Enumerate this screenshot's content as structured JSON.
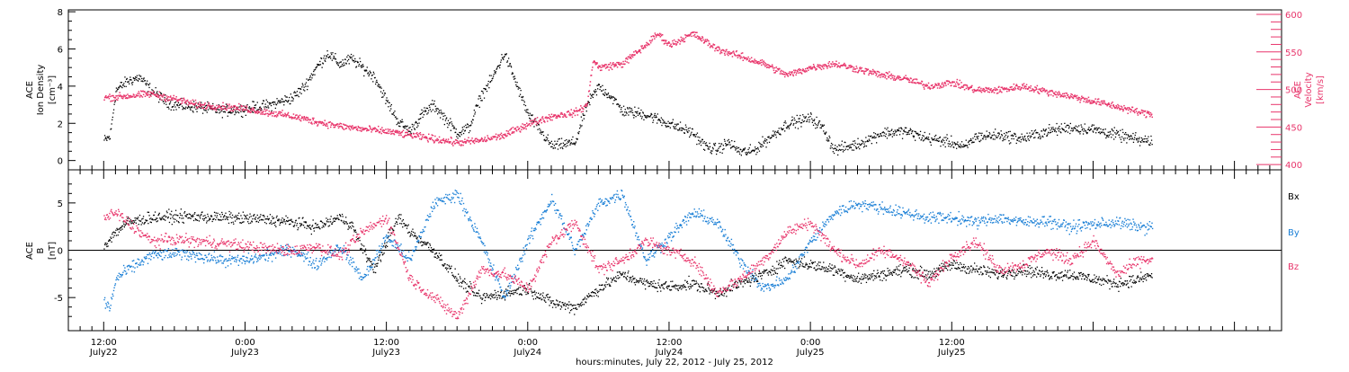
{
  "chart_data": [
    {
      "type": "scatter",
      "panel": "top",
      "ylabel": [
        "ACE",
        "Ion Density",
        "[cm⁻³]"
      ],
      "ylim": [
        -0.5,
        8.1
      ],
      "yticks": [
        0,
        2,
        4,
        6,
        8
      ],
      "y2label": [
        "ACE",
        "Velocity",
        "[km/s]"
      ],
      "y2lim": [
        393,
        606
      ],
      "y2ticks": [
        400,
        450,
        500,
        550,
        600
      ],
      "colors": {
        "density": "#000000",
        "velocity": "#e8356b"
      },
      "series": [
        {
          "key": "density",
          "axis": "left",
          "x": [
            0,
            0.5,
            1,
            2,
            3,
            4,
            5,
            6,
            8,
            10,
            12,
            14,
            16,
            17,
            18,
            19,
            20,
            21,
            22,
            23,
            24,
            25,
            26,
            27,
            28,
            30,
            31,
            32,
            33,
            34,
            36,
            38,
            40,
            41,
            42,
            43,
            44,
            46,
            48,
            50,
            51,
            52,
            53,
            54,
            55,
            56,
            58,
            60,
            61,
            62,
            64,
            66,
            68,
            70,
            72,
            73,
            74,
            76,
            78,
            80,
            82,
            84,
            86,
            88,
            89
          ],
          "y": [
            1.1,
            1.3,
            3.8,
            4.3,
            4.5,
            3.8,
            3.3,
            3.0,
            2.9,
            2.7,
            2.8,
            3.0,
            3.4,
            4.0,
            5.0,
            5.8,
            5.2,
            5.5,
            5.0,
            4.5,
            3.2,
            2.1,
            1.6,
            2.5,
            3.0,
            1.5,
            1.8,
            3.5,
            4.5,
            5.8,
            2.5,
            0.8,
            1.0,
            3.0,
            4.0,
            3.5,
            2.7,
            2.5,
            2.0,
            1.5,
            0.8,
            0.6,
            1.0,
            0.5,
            0.5,
            1.0,
            2.0,
            2.3,
            1.8,
            0.6,
            0.9,
            1.5,
            1.6,
            1.2,
            1.0,
            0.7,
            1.3,
            1.4,
            1.2,
            1.6,
            1.8,
            1.7,
            1.4,
            1.1,
            1.1
          ]
        },
        {
          "key": "velocity",
          "axis": "right",
          "x": [
            0,
            2,
            4,
            6,
            8,
            10,
            12,
            14,
            16,
            18,
            20,
            22,
            24,
            26,
            28,
            30,
            32,
            34,
            36,
            38,
            40,
            41,
            41.5,
            42,
            44,
            46,
            47,
            48,
            50,
            52,
            54,
            56,
            58,
            60,
            62,
            64,
            66,
            68,
            70,
            72,
            74,
            76,
            78,
            80,
            82,
            84,
            86,
            88,
            89
          ],
          "y": [
            490,
            492,
            495,
            488,
            480,
            478,
            475,
            470,
            465,
            458,
            452,
            448,
            445,
            440,
            435,
            430,
            433,
            440,
            455,
            465,
            470,
            480,
            540,
            530,
            535,
            560,
            575,
            560,
            575,
            555,
            545,
            535,
            520,
            530,
            535,
            528,
            520,
            515,
            505,
            510,
            500,
            500,
            505,
            498,
            492,
            485,
            478,
            470,
            468
          ]
        }
      ]
    },
    {
      "type": "scatter",
      "panel": "bottom",
      "ylabel": [
        "ACE",
        "B",
        "[nT]"
      ],
      "ylim": [
        -8.5,
        8.5
      ],
      "yticks": [
        -5,
        0,
        5
      ],
      "zero_line": true,
      "legend": [
        "Bx",
        "By",
        "Bz"
      ],
      "colors": {
        "bx": "#000000",
        "by": "#1a7fd6",
        "bz": "#e8356b"
      },
      "series": [
        {
          "name": "Bx",
          "key": "bx",
          "x": [
            0,
            1,
            2,
            4,
            6,
            8,
            10,
            14,
            16,
            18,
            20,
            21,
            22,
            23,
            24,
            25,
            26,
            28,
            30,
            32,
            34,
            36,
            38,
            40,
            42,
            44,
            46,
            48,
            50,
            52,
            54,
            56,
            58,
            60,
            62,
            64,
            66,
            68,
            70,
            72,
            74,
            76,
            78,
            80,
            82,
            84,
            86,
            88,
            89
          ],
          "y": [
            0.5,
            2.0,
            3.0,
            3.5,
            3.6,
            3.6,
            3.5,
            3.3,
            3.0,
            2.5,
            3.5,
            2.8,
            0,
            -2.0,
            1.0,
            3.5,
            2.0,
            0,
            -3.0,
            -5.0,
            -4.5,
            -4.0,
            -5.5,
            -6.0,
            -4.0,
            -2.5,
            -3.5,
            -3.8,
            -3.5,
            -4.5,
            -3.5,
            -2.5,
            -1.0,
            -1.5,
            -2.0,
            -3.0,
            -2.5,
            -2.0,
            -2.5,
            -1.5,
            -2.0,
            -2.5,
            -2.0,
            -2.5,
            -2.5,
            -3.0,
            -3.5,
            -3.0,
            -2.5
          ]
        },
        {
          "name": "By",
          "key": "by",
          "x": [
            0,
            0.5,
            1,
            2,
            4,
            6,
            8,
            10,
            12,
            14,
            16,
            18,
            20,
            22,
            24,
            26,
            28,
            30,
            32,
            34,
            36,
            38,
            40,
            42,
            44,
            46,
            48,
            50,
            52,
            54,
            56,
            58,
            60,
            62,
            64,
            66,
            68,
            70,
            72,
            74,
            76,
            78,
            80,
            82,
            84,
            86,
            88,
            89
          ],
          "y": [
            -5.5,
            -6.0,
            -3.0,
            -2.0,
            -0.5,
            -0.3,
            -0.5,
            -1.0,
            -1.0,
            -0.5,
            0.2,
            -1.5,
            0.5,
            -3.0,
            1.5,
            -1.0,
            5.0,
            6.0,
            1.0,
            -5.0,
            1.0,
            5.5,
            0,
            5.0,
            6.0,
            -1.0,
            1.5,
            4.0,
            3.0,
            -1.0,
            -4.0,
            -3.0,
            1.0,
            4.0,
            5.0,
            4.5,
            4.0,
            3.5,
            3.5,
            3.0,
            3.5,
            3.0,
            3.2,
            2.5,
            2.8,
            3.0,
            2.5,
            2.5
          ]
        },
        {
          "name": "Bz",
          "key": "bz",
          "x": [
            0,
            1,
            2,
            4,
            6,
            8,
            10,
            12,
            14,
            16,
            18,
            20,
            22,
            24,
            26,
            28,
            30,
            32,
            34,
            36,
            38,
            40,
            42,
            44,
            46,
            48,
            50,
            52,
            54,
            56,
            58,
            60,
            62,
            64,
            66,
            68,
            70,
            72,
            74,
            76,
            78,
            80,
            82,
            84,
            86,
            88,
            89
          ],
          "y": [
            3.5,
            4.0,
            3.0,
            1.0,
            1.2,
            1.0,
            0.8,
            0.5,
            0.2,
            0.0,
            0.5,
            -0.5,
            2.0,
            3.5,
            -3.0,
            -5.0,
            -7.0,
            -2.0,
            -2.5,
            -4.0,
            1.0,
            3.0,
            -2.0,
            -1.0,
            1.0,
            0.0,
            -1.0,
            -4.5,
            -3.0,
            -1.0,
            2.0,
            3.0,
            0.0,
            -1.5,
            0.0,
            -1.0,
            -3.5,
            -0.5,
            1.0,
            -2.0,
            -1.5,
            0.0,
            -1.0,
            1.0,
            -2.5,
            -1.0,
            -1.0
          ]
        }
      ]
    }
  ],
  "x_axis": {
    "range_hours": [
      -3,
      100
    ],
    "ticks": [
      {
        "at": 0,
        "time": "12:00",
        "day": "July22"
      },
      {
        "at": 12,
        "time": "0:00",
        "day": "July23"
      },
      {
        "at": 24,
        "time": "12:00",
        "day": "July23"
      },
      {
        "at": 36,
        "time": "0:00",
        "day": "July24"
      },
      {
        "at": 48,
        "time": "12:00",
        "day": "July24"
      },
      {
        "at": 60,
        "time": "0:00",
        "day": "July25"
      },
      {
        "at": 72,
        "time": "12:00",
        "day": "July25"
      }
    ],
    "xlabel": "hours:minutes, July 22, 2012 - July 25, 2012"
  }
}
